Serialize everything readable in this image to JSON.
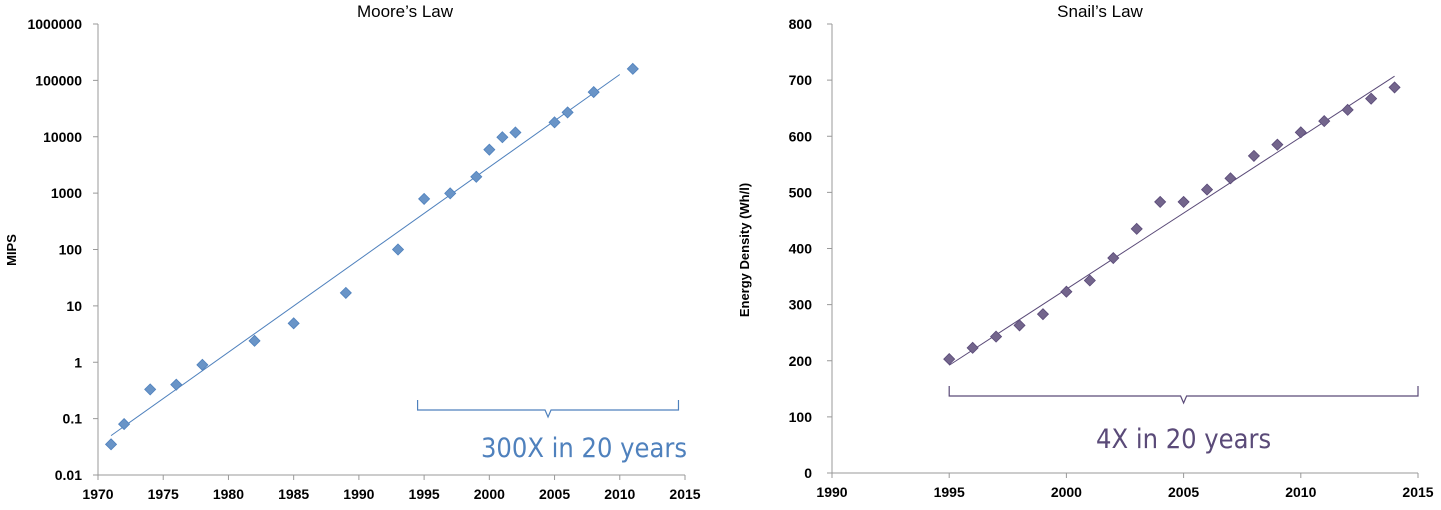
{
  "chart_data": [
    {
      "type": "scatter",
      "title": "Moore’s Law",
      "xlabel": "",
      "ylabel": "MIPS",
      "yscale": "log",
      "xlim": [
        1970,
        2015
      ],
      "ylim": [
        0.01,
        1000000
      ],
      "xticks": [
        "1970",
        "1975",
        "1980",
        "1985",
        "1990",
        "1995",
        "2000",
        "2005",
        "2010",
        "2015"
      ],
      "yticks": [
        "0.01",
        "0.1",
        "1",
        "10",
        "100",
        "1000",
        "10000",
        "100000",
        "1000000"
      ],
      "grid": false,
      "marker_color": "#4f81bd",
      "x": [
        1971,
        1972,
        1974,
        1976,
        1978,
        1982,
        1985,
        1989,
        1993,
        1995,
        1997,
        1999,
        2000,
        2001,
        2002,
        2005,
        2006,
        2008,
        2011
      ],
      "y": [
        0.035,
        0.08,
        0.33,
        0.4,
        0.9,
        2.4,
        4.9,
        17,
        100,
        790,
        990,
        1950,
        5900,
        9800,
        11900,
        18000,
        27000,
        62000,
        160000
      ],
      "trendline": {
        "x": [
          1971,
          2010
        ],
        "y": [
          0.05,
          127000
        ]
      },
      "annotation": {
        "text": "300X in 20 years",
        "color": "#4f81bd",
        "bracket_x": [
          1994.5,
          2014.5
        ]
      }
    },
    {
      "type": "scatter",
      "title": "Snail’s Law",
      "xlabel": "",
      "ylabel": "Energy Density (Wh/l)",
      "xlim": [
        1990,
        2015
      ],
      "ylim": [
        0,
        800
      ],
      "xticks": [
        "1990",
        "1995",
        "2000",
        "2005",
        "2010",
        "2015"
      ],
      "yticks": [
        "0",
        "100",
        "200",
        "300",
        "400",
        "500",
        "600",
        "700",
        "800"
      ],
      "grid": false,
      "marker_color": "#5a4a78",
      "x": [
        1995,
        1996,
        1997,
        1998,
        1999,
        2000,
        2001,
        2002,
        2003,
        2004,
        2005,
        2006,
        2007,
        2008,
        2009,
        2010,
        2011,
        2012,
        2013,
        2014
      ],
      "y": [
        203,
        223,
        243,
        263,
        283,
        323,
        343,
        383,
        435,
        483,
        483,
        505,
        525,
        565,
        585,
        607,
        627,
        647,
        667,
        687
      ],
      "trendline": {
        "x": [
          1995,
          2014
        ],
        "y": [
          192,
          707
        ]
      },
      "annotation": {
        "text": "4X in 20 years",
        "color": "#5a4a78",
        "bracket_x": [
          1995,
          2015
        ]
      }
    }
  ]
}
